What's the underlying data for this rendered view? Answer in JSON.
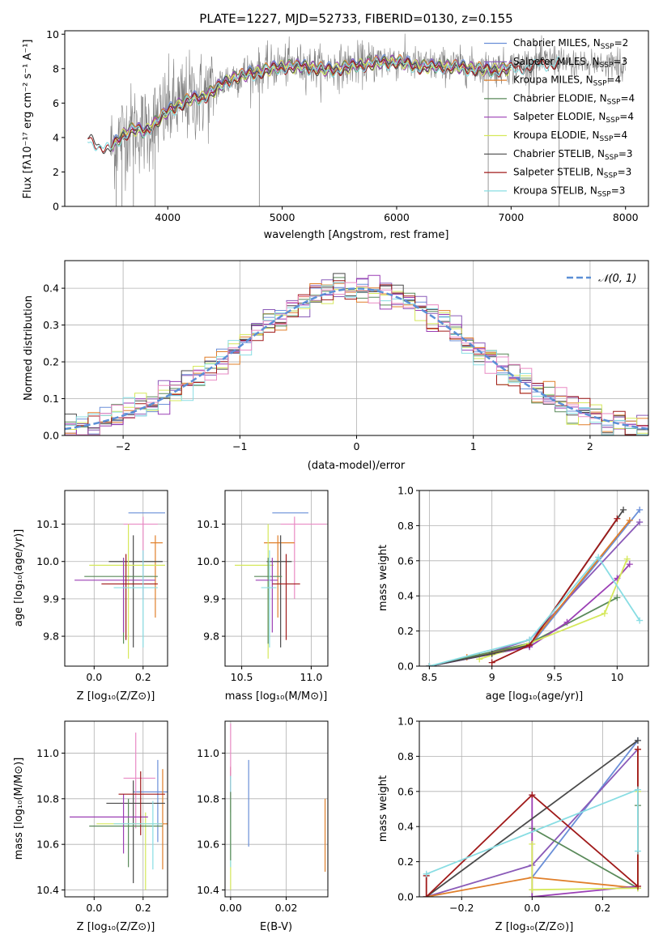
{
  "title": "PLATE=1227, MJD=52733, FIBERID=0130, z=0.155",
  "series_styles": [
    {
      "key": "chabrier_miles",
      "color": "#6a8fd8"
    },
    {
      "key": "salpeter_miles",
      "color": "#8a5ab8"
    },
    {
      "key": "kroupa_miles",
      "color": "#e07f2a"
    },
    {
      "key": "chabrier_elodie",
      "color": "#5a8a5a"
    },
    {
      "key": "salpeter_elodie",
      "color": "#9b3fb5"
    },
    {
      "key": "kroupa_elodie",
      "color": "#d5e85a"
    },
    {
      "key": "chabrier_stelib",
      "color": "#4a4a4a"
    },
    {
      "key": "salpeter_stelib",
      "color": "#a01a1a"
    },
    {
      "key": "kroupa_stelib",
      "color": "#88dde3"
    },
    {
      "key": "extra_pink",
      "color": "#e98ac4"
    }
  ],
  "chart_data": [
    {
      "id": "spectrum",
      "type": "line",
      "title": "PLATE=1227, MJD=52733, FIBERID=0130, z=0.155",
      "xlabel": "wavelength [Angstrom, rest frame]",
      "ylabel": "Flux [fλ10⁻¹⁷ erg cm⁻² s⁻¹ A⁻¹]",
      "xlim": [
        3100,
        8200
      ],
      "ylim": [
        0,
        10.2
      ],
      "xticks": [
        4000,
        5000,
        6000,
        7000,
        8000
      ],
      "yticks": [
        0,
        2,
        4,
        6,
        8,
        10
      ],
      "legend_position": "right",
      "legend": [
        "Chabrier MILES, N_SSP=2",
        "Salpeter MILES, N_SSP=3",
        "Kroupa MILES, N_SSP=4",
        "Chabrier ELODIE, N_SSP=4",
        "Salpeter ELODIE, N_SSP=4",
        "Kroupa ELODIE, N_SSP=4",
        "Chabrier STELIB, N_SSP=3",
        "Salpeter STELIB, N_SSP=3",
        "Kroupa STELIB, N_SSP=3"
      ],
      "observed_spectrum_color": "#808080",
      "continuum_points": [
        [
          3300,
          4.0
        ],
        [
          3500,
          3.4
        ],
        [
          3600,
          4.2
        ],
        [
          3700,
          4.6
        ],
        [
          3800,
          4.4
        ],
        [
          3900,
          5.0
        ],
        [
          4000,
          5.6
        ],
        [
          4100,
          6.0
        ],
        [
          4200,
          6.3
        ],
        [
          4300,
          6.4
        ],
        [
          4400,
          6.8
        ],
        [
          4500,
          7.3
        ],
        [
          4600,
          7.6
        ],
        [
          4800,
          7.9
        ],
        [
          5000,
          8.2
        ],
        [
          5200,
          8.2
        ],
        [
          5400,
          8.0
        ],
        [
          5600,
          8.2
        ],
        [
          5800,
          8.4
        ],
        [
          6000,
          8.5
        ],
        [
          6200,
          8.2
        ],
        [
          6500,
          8.2
        ],
        [
          6800,
          8.0
        ],
        [
          7000,
          8.1
        ],
        [
          7200,
          8.3
        ],
        [
          7420,
          8.5
        ]
      ]
    },
    {
      "id": "residual_histogram",
      "type": "step",
      "xlabel": "(data-model)/error",
      "ylabel": "Normed distribution",
      "xlim": [
        -2.5,
        2.5
      ],
      "ylim": [
        0,
        0.475
      ],
      "xticks": [
        -2,
        -1,
        0,
        1,
        2
      ],
      "yticks": [
        0.0,
        0.1,
        0.2,
        0.3,
        0.4
      ],
      "legend_position": "top-right",
      "legend": [
        "𝒩(0, 1)"
      ],
      "gaussian": {
        "mean": 0,
        "sigma": 1,
        "color": "#5b8fd6",
        "style": "dashed"
      },
      "bin_width": 0.1
    },
    {
      "id": "age_vs_Z",
      "type": "errorbar",
      "xlabel": "Z [log₁₀(Z/Z⊙)]",
      "ylabel": "age  [log₁₀(age/yr)]",
      "xlim": [
        -0.12,
        0.3
      ],
      "ylim": [
        9.72,
        10.19
      ],
      "xticks": [
        0.0,
        0.2
      ],
      "xtick_labels": [
        "0.0",
        "0.2"
      ],
      "yticks": [
        9.8,
        9.9,
        10.0,
        10.1
      ],
      "points": [
        {
          "s": 0,
          "x": 0.24,
          "xe": [
            0.1,
            0.05
          ],
          "y": 10.13,
          "ye": [
            0.0,
            0.0
          ]
        },
        {
          "s": 9,
          "x": 0.2,
          "xe": [
            0.08,
            0.06
          ],
          "y": 10.1,
          "ye": [
            0.2,
            0.02
          ]
        },
        {
          "s": 2,
          "x": 0.25,
          "xe": [
            0.02,
            0.03
          ],
          "y": 10.05,
          "ye": [
            0.2,
            0.02
          ]
        },
        {
          "s": 6,
          "x": 0.16,
          "xe": [
            0.1,
            0.12
          ],
          "y": 10.0,
          "ye": [
            0.23,
            0.07
          ]
        },
        {
          "s": 5,
          "x": 0.14,
          "xe": [
            0.16,
            0.15
          ],
          "y": 9.99,
          "ye": [
            0.25,
            0.11
          ]
        },
        {
          "s": 3,
          "x": 0.12,
          "xe": [
            0.16,
            0.14
          ],
          "y": 9.96,
          "ye": [
            0.18,
            0.05
          ]
        },
        {
          "s": 4,
          "x": 0.12,
          "xe": [
            0.2,
            0.13
          ],
          "y": 9.95,
          "ye": [
            0.14,
            0.06
          ]
        },
        {
          "s": 7,
          "x": 0.13,
          "xe": [
            0.1,
            0.13
          ],
          "y": 9.94,
          "ye": [
            0.15,
            0.08
          ]
        },
        {
          "s": 8,
          "x": 0.2,
          "xe": [
            0.12,
            0.06
          ],
          "y": 9.93,
          "ye": [
            0.16,
            0.1
          ]
        }
      ]
    },
    {
      "id": "age_vs_mass",
      "type": "errorbar",
      "xlabel": "mass [log₁₀(M/M⊙)]",
      "ylabel": "",
      "xlim": [
        10.38,
        11.12
      ],
      "ylim": [
        9.72,
        10.19
      ],
      "xticks": [
        10.5,
        11.0
      ],
      "xtick_labels": [
        "10.5",
        "11.0"
      ],
      "yticks": [
        9.8,
        9.9,
        10.0,
        10.1
      ],
      "points": [
        {
          "s": 0,
          "x": 10.84,
          "xe": [
            0.12,
            0.14
          ],
          "y": 10.13,
          "ye": [
            0.0,
            0.0
          ]
        },
        {
          "s": 9,
          "x": 10.88,
          "xe": [
            0.1,
            0.23
          ],
          "y": 10.1,
          "ye": [
            0.2,
            0.02
          ]
        },
        {
          "s": 2,
          "x": 10.76,
          "xe": [
            0.1,
            0.12
          ],
          "y": 10.05,
          "ye": [
            0.2,
            0.02
          ]
        },
        {
          "s": 6,
          "x": 10.78,
          "xe": [
            0.1,
            0.08
          ],
          "y": 10.0,
          "ye": [
            0.23,
            0.07
          ]
        },
        {
          "s": 5,
          "x": 10.69,
          "xe": [
            0.24,
            0.04
          ],
          "y": 9.99,
          "ye": [
            0.25,
            0.11
          ]
        },
        {
          "s": 3,
          "x": 10.69,
          "xe": [
            0.1,
            0.1
          ],
          "y": 9.96,
          "ye": [
            0.18,
            0.05
          ]
        },
        {
          "s": 4,
          "x": 10.72,
          "xe": [
            0.12,
            0.04
          ],
          "y": 9.95,
          "ye": [
            0.14,
            0.06
          ]
        },
        {
          "s": 7,
          "x": 10.82,
          "xe": [
            0.1,
            0.1
          ],
          "y": 9.94,
          "ye": [
            0.15,
            0.08
          ]
        },
        {
          "s": 8,
          "x": 10.7,
          "xe": [
            0.06,
            0.05
          ],
          "y": 9.93,
          "ye": [
            0.16,
            0.1
          ]
        }
      ]
    },
    {
      "id": "weight_vs_age",
      "type": "line",
      "xlabel": "age  [log₁₀(age/yr)]",
      "ylabel": "mass weight",
      "xlim": [
        8.42,
        10.25
      ],
      "ylim": [
        0,
        1.0
      ],
      "xticks": [
        8.5,
        9.0,
        9.5,
        10.0
      ],
      "yticks": [
        0.0,
        0.2,
        0.4,
        0.6,
        0.8,
        1.0
      ],
      "series": [
        {
          "s": 0,
          "points": [
            [
              8.5,
              0.0
            ],
            [
              9.3,
              0.11
            ],
            [
              10.18,
              0.89
            ]
          ]
        },
        {
          "s": 1,
          "points": [
            [
              8.9,
              0.06
            ],
            [
              9.3,
              0.15
            ],
            [
              10.18,
              0.82
            ]
          ]
        },
        {
          "s": 2,
          "points": [
            [
              8.5,
              0.0
            ],
            [
              8.8,
              0.05
            ],
            [
              9.3,
              0.12
            ],
            [
              10.1,
              0.83
            ]
          ]
        },
        {
          "s": 3,
          "points": [
            [
              8.5,
              0.0
            ],
            [
              9.3,
              0.13
            ],
            [
              10.0,
              0.39
            ]
          ]
        },
        {
          "s": 4,
          "points": [
            [
              8.5,
              0.0
            ],
            [
              9.3,
              0.11
            ],
            [
              9.6,
              0.25
            ],
            [
              10.0,
              0.5
            ],
            [
              10.1,
              0.58
            ]
          ]
        },
        {
          "s": 5,
          "points": [
            [
              8.9,
              0.04
            ],
            [
              9.3,
              0.13
            ],
            [
              9.9,
              0.3
            ],
            [
              10.08,
              0.61
            ]
          ]
        },
        {
          "s": 6,
          "points": [
            [
              8.5,
              0.0
            ],
            [
              9.0,
              0.07
            ],
            [
              9.3,
              0.12
            ],
            [
              10.05,
              0.89
            ]
          ]
        },
        {
          "s": 7,
          "points": [
            [
              9.0,
              0.02
            ],
            [
              9.3,
              0.12
            ],
            [
              10.0,
              0.84
            ]
          ]
        },
        {
          "s": 8,
          "points": [
            [
              8.5,
              0.0
            ],
            [
              9.3,
              0.15
            ],
            [
              9.85,
              0.62
            ],
            [
              10.18,
              0.26
            ]
          ]
        }
      ]
    },
    {
      "id": "mass_vs_Z",
      "type": "errorbar",
      "xlabel": "Z [log₁₀(Z/Z⊙)]",
      "ylabel": "mass [log₁₀(M/M⊙)]",
      "xlim": [
        -0.12,
        0.3
      ],
      "ylim": [
        10.37,
        11.14
      ],
      "xticks": [
        0.0,
        0.2
      ],
      "xtick_labels": [
        "0.0",
        "0.2"
      ],
      "yticks": [
        10.4,
        10.6,
        10.8,
        11.0
      ],
      "points": [
        {
          "s": 0,
          "x": 0.26,
          "xe": [
            0.1,
            0.04
          ],
          "y": 10.83,
          "ye": [
            0.22,
            0.14
          ]
        },
        {
          "s": 9,
          "x": 0.17,
          "xe": [
            0.05,
            0.08
          ],
          "y": 10.89,
          "ye": [
            0.22,
            0.2
          ]
        },
        {
          "s": 2,
          "x": 0.28,
          "xe": [
            0.02,
            0.02
          ],
          "y": 10.69,
          "ye": [
            0.2,
            0.24
          ]
        },
        {
          "s": 6,
          "x": 0.16,
          "xe": [
            0.11,
            0.13
          ],
          "y": 10.78,
          "ye": [
            0.35,
            0.1
          ]
        },
        {
          "s": 5,
          "x": 0.21,
          "xe": [
            0.2,
            0.05
          ],
          "y": 10.69,
          "ye": [
            0.29,
            0.05
          ]
        },
        {
          "s": 3,
          "x": 0.14,
          "xe": [
            0.16,
            0.14
          ],
          "y": 10.68,
          "ye": [
            0.18,
            0.12
          ]
        },
        {
          "s": 4,
          "x": 0.12,
          "xe": [
            0.22,
            0.1
          ],
          "y": 10.72,
          "ye": [
            0.16,
            0.1
          ]
        },
        {
          "s": 7,
          "x": 0.19,
          "xe": [
            0.09,
            0.1
          ],
          "y": 10.82,
          "ye": [
            0.18,
            0.1
          ]
        },
        {
          "s": 8,
          "x": 0.24,
          "xe": [
            0.16,
            0.04
          ],
          "y": 10.69,
          "ye": [
            0.2,
            0.1
          ]
        }
      ]
    },
    {
      "id": "mass_vs_ebv",
      "type": "errorbar",
      "xlabel": "E(B-V)",
      "ylabel": "",
      "xlim": [
        -0.002,
        0.035
      ],
      "ylim": [
        10.37,
        11.14
      ],
      "xticks": [
        0.0,
        0.02
      ],
      "xtick_labels": [
        "0.00",
        "0.02"
      ],
      "yticks": [
        10.4,
        10.6,
        10.8,
        11.0
      ],
      "points": [
        {
          "s": 0,
          "x": 0.0065,
          "xe": [
            0,
            0
          ],
          "y": 10.78,
          "ye": [
            0.19,
            0.19
          ]
        },
        {
          "s": 2,
          "x": 0.034,
          "xe": [
            0,
            0
          ],
          "y": 10.64,
          "ye": [
            0.16,
            0.16
          ]
        },
        {
          "s": 7,
          "x": 0.0,
          "xe": [
            0,
            0
          ],
          "y": 10.84,
          "ye": [
            0.1,
            0.1
          ]
        },
        {
          "s": 9,
          "x": 0.0,
          "xe": [
            0,
            0
          ],
          "y": 10.95,
          "ye": [
            0.18,
            0.18
          ]
        },
        {
          "s": 5,
          "x": 0.0,
          "xe": [
            0,
            0
          ],
          "y": 10.6,
          "ye": [
            0.2,
            0.2
          ]
        },
        {
          "s": 8,
          "x": 0.0,
          "xe": [
            0,
            0
          ],
          "y": 10.7,
          "ye": [
            0.2,
            0.2
          ]
        },
        {
          "s": 3,
          "x": 0.0,
          "xe": [
            0,
            0
          ],
          "y": 10.68,
          "ye": [
            0.15,
            0.15
          ]
        }
      ]
    },
    {
      "id": "weight_vs_Z",
      "type": "line",
      "xlabel": "Z [log₁₀(Z/Z⊙)]",
      "ylabel": "mass weight",
      "xlim": [
        -0.32,
        0.33
      ],
      "ylim": [
        0,
        1.0
      ],
      "xticks": [
        -0.2,
        0.0,
        0.2
      ],
      "xtick_labels": [
        "−0.2",
        "0.0",
        "0.2"
      ],
      "yticks": [
        0.0,
        0.2,
        0.4,
        0.6,
        0.8,
        1.0
      ],
      "series": [
        {
          "s": 0,
          "points": [
            [
              0.0,
              0.11
            ],
            [
              0.3,
              0.89
            ]
          ]
        },
        {
          "s": 1,
          "points": [
            [
              -0.3,
              0.0
            ],
            [
              0.0,
              0.18
            ],
            [
              0.3,
              0.84
            ]
          ]
        },
        {
          "s": 2,
          "points": [
            [
              -0.3,
              0.0
            ],
            [
              0.0,
              0.11
            ],
            [
              0.3,
              0.05
            ],
            [
              0.3,
              0.84
            ]
          ]
        },
        {
          "s": 3,
          "points": [
            [
              0.0,
              0.39
            ],
            [
              0.3,
              0.05
            ],
            [
              0.3,
              0.52
            ]
          ]
        },
        {
          "s": 4,
          "points": [
            [
              0.0,
              0.58
            ],
            [
              0.0,
              0.0
            ],
            [
              0.3,
              0.06
            ]
          ]
        },
        {
          "s": 5,
          "points": [
            [
              0.0,
              0.3
            ],
            [
              0.0,
              0.04
            ],
            [
              0.3,
              0.05
            ],
            [
              0.3,
              0.6
            ]
          ]
        },
        {
          "s": 6,
          "points": [
            [
              -0.3,
              0.0
            ],
            [
              0.3,
              0.89
            ]
          ]
        },
        {
          "s": 7,
          "points": [
            [
              -0.3,
              0.12
            ],
            [
              -0.3,
              0.0
            ],
            [
              0.0,
              0.58
            ],
            [
              0.3,
              0.06
            ],
            [
              0.3,
              0.84
            ]
          ]
        },
        {
          "s": 8,
          "points": [
            [
              -0.3,
              0.13
            ],
            [
              0.3,
              0.61
            ],
            [
              0.3,
              0.26
            ]
          ]
        }
      ]
    }
  ]
}
